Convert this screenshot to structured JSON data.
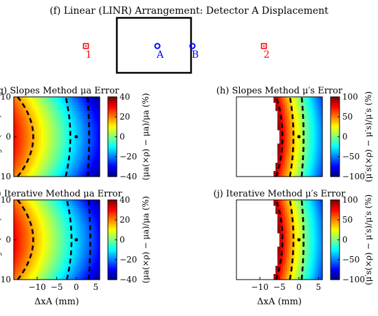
{
  "figure": {
    "top_panel": {
      "title": "(f) Linear (LINR) Arrangement: Detector A Displacement",
      "markers": [
        {
          "label": "1",
          "shape": "square",
          "color": "#ff0000"
        },
        {
          "label": "A",
          "shape": "circle",
          "color": "#0000ff"
        },
        {
          "label": "B",
          "shape": "circle",
          "color": "#0000ff"
        },
        {
          "label": "2",
          "shape": "square",
          "color": "#ff0000"
        }
      ]
    }
  },
  "chart_data": [
    {
      "id": "g",
      "type": "heatmap",
      "title": "(g) Slopes Method μa Error",
      "ylabel": "ΔyA (mm)",
      "xlabel": "",
      "xlim": [
        -16,
        6
      ],
      "ylim": [
        -10,
        10
      ],
      "xticks": [],
      "yticks": [
        -10,
        0,
        10
      ],
      "colorbar": {
        "label": "(μa(×ρ) − μa)/μa (%)",
        "range": [
          -40,
          40
        ],
        "ticks": [
          40,
          20,
          0,
          -20,
          -40
        ],
        "colormap": "jet"
      },
      "field": {
        "kind": "mua",
        "center_shift": 0
      },
      "contours": [
        {
          "x_at_center": -11,
          "bulge": 4
        },
        {
          "x_at_center": -1.5,
          "bulge": 1.2
        },
        {
          "x_at_center": 3.3,
          "bulge": 0.4
        }
      ],
      "marker": {
        "x": 0,
        "y": 0
      }
    },
    {
      "id": "h",
      "type": "heatmap",
      "title": "(h) Slopes Method μ′s Error",
      "ylabel": "",
      "xlabel": "",
      "xlim": [
        -16,
        6
      ],
      "ylim": [
        -10,
        10
      ],
      "xticks": [],
      "yticks": [],
      "colorbar": {
        "label": "(μ′s(×ρ) − μ′s)/μ′s (%)",
        "range": [
          -100,
          100
        ],
        "ticks": [
          100,
          50,
          0,
          -50,
          -100
        ],
        "colormap": "jet"
      },
      "field": {
        "kind": "mus",
        "white_left_of": -5.2
      },
      "contours": [
        {
          "x_at_center": -4.2,
          "bulge": 1.6
        },
        {
          "x_at_center": -1.4,
          "bulge": 0.9
        },
        {
          "x_at_center": 1.2,
          "bulge": 0.5
        }
      ],
      "marker": {
        "x": 0,
        "y": 0
      }
    },
    {
      "id": "i",
      "type": "heatmap",
      "title": "(i) Iterative Method μa Error",
      "ylabel": "ΔyA (mm)",
      "xlabel": "ΔxA (mm)",
      "xlim": [
        -16,
        6
      ],
      "ylim": [
        -10,
        10
      ],
      "xticks": [
        -10,
        -5,
        0,
        5
      ],
      "yticks": [
        -10,
        0,
        10
      ],
      "colorbar": {
        "label": "(μa(×ρ) − μa)/μa (%)",
        "range": [
          -40,
          40
        ],
        "ticks": [
          40,
          20,
          0,
          -20,
          -40
        ],
        "colormap": "jet"
      },
      "field": {
        "kind": "mua",
        "center_shift": 0.3
      },
      "contours": [
        {
          "x_at_center": -11,
          "bulge": 4
        },
        {
          "x_at_center": -1.2,
          "bulge": 1.2
        },
        {
          "x_at_center": 3.6,
          "bulge": 0.4
        }
      ],
      "marker": {
        "x": 0,
        "y": 0
      }
    },
    {
      "id": "j",
      "type": "heatmap",
      "title": "(j) Iterative Method μ′s Error",
      "ylabel": "",
      "xlabel": "ΔxA (mm)",
      "xlim": [
        -16,
        6
      ],
      "ylim": [
        -10,
        10
      ],
      "xticks": [
        -10,
        -5,
        0,
        5
      ],
      "yticks": [],
      "colorbar": {
        "label": "(μ′s(×ρ) − μ′s)/μ′s (%)",
        "range": [
          -100,
          100
        ],
        "ticks": [
          100,
          50,
          0,
          -50,
          -100
        ],
        "colormap": "jet"
      },
      "field": {
        "kind": "mus",
        "white_left_of": -5.2
      },
      "contours": [
        {
          "x_at_center": -4.2,
          "bulge": 1.6
        },
        {
          "x_at_center": -1.4,
          "bulge": 0.9
        },
        {
          "x_at_center": 1.2,
          "bulge": 0.5
        }
      ],
      "marker": {
        "x": 0,
        "y": 0
      }
    }
  ]
}
